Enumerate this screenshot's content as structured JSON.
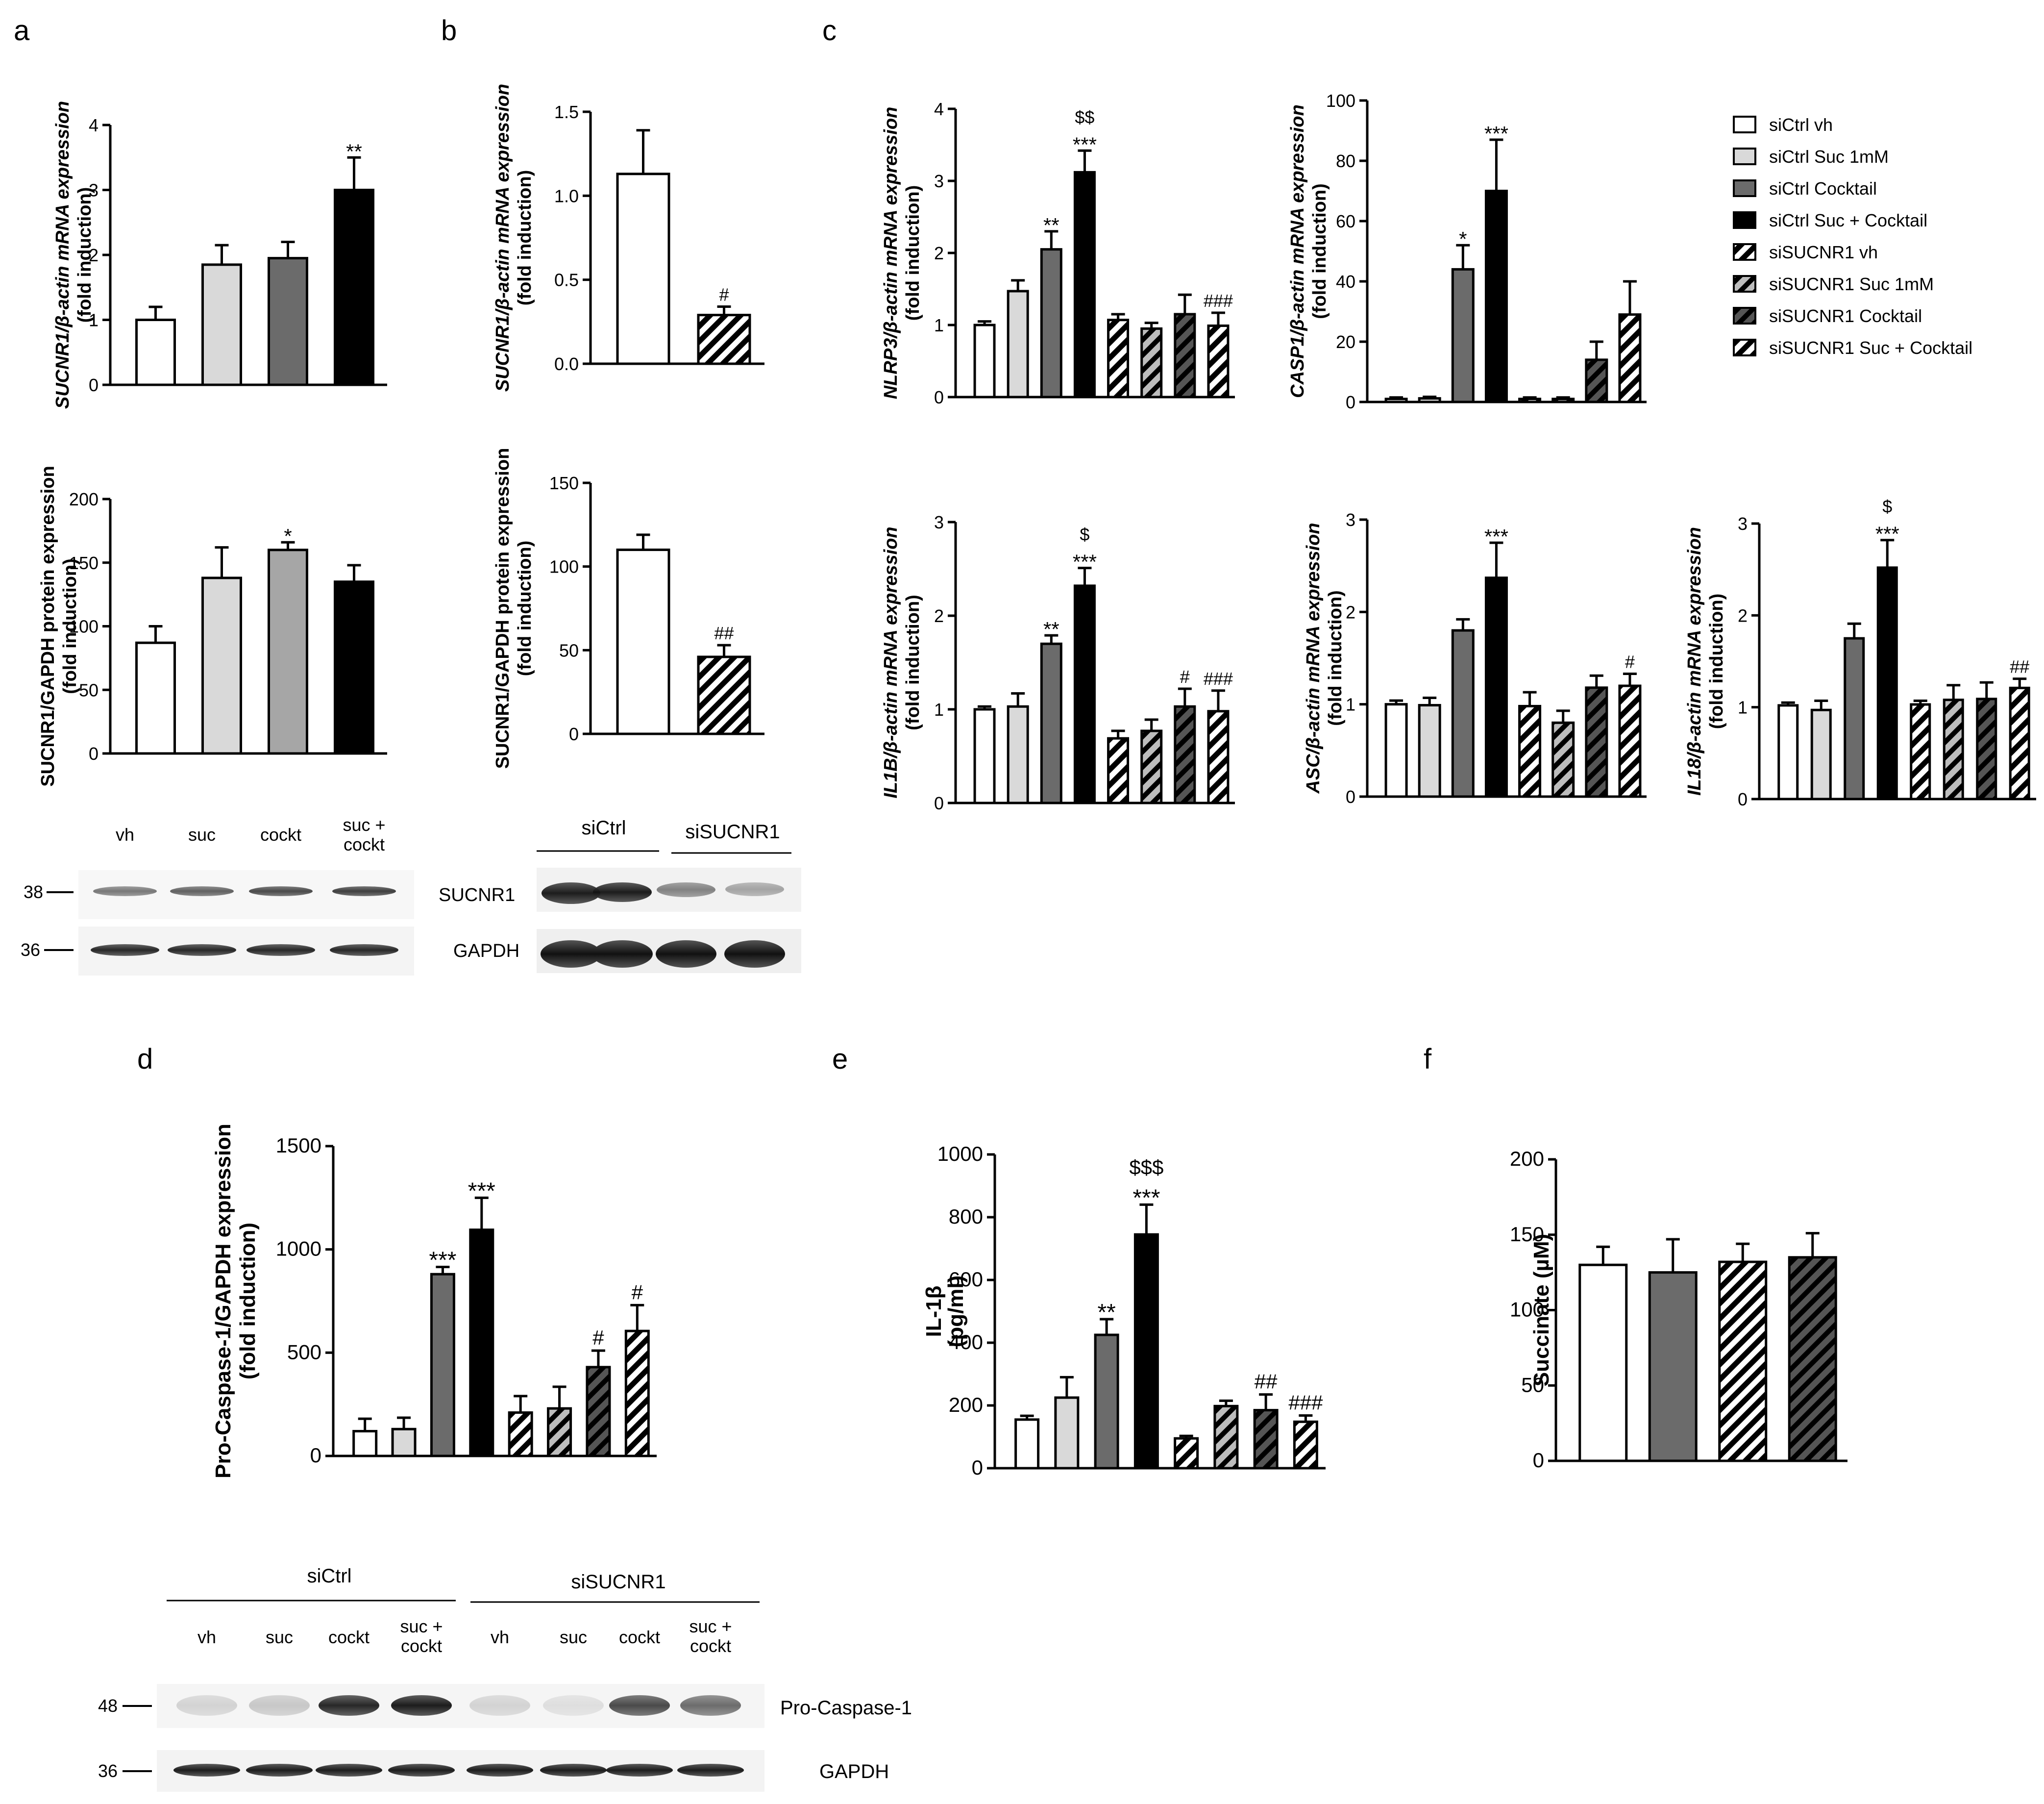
{
  "panel_letters": [
    "a",
    "b",
    "c",
    "d",
    "e",
    "f"
  ],
  "legend": [
    {
      "label": "siCtrl vh",
      "fill": "white"
    },
    {
      "label": "siCtrl Suc 1mM",
      "fill": "light"
    },
    {
      "label": "siCtrl Cocktail",
      "fill": "dark"
    },
    {
      "label": "siCtrl Suc + Cocktail",
      "fill": "black"
    },
    {
      "label": "siSUCNR1 vh",
      "fill": "hatch"
    },
    {
      "label": "siSUCNR1 Suc 1mM",
      "fill": "hatchLight"
    },
    {
      "label": "siSUCNR1 Cocktail",
      "fill": "hatchDark"
    },
    {
      "label": "siSUCNR1 Suc + Cocktail",
      "fill": "hatch"
    }
  ],
  "colors": {
    "white": "#ffffff",
    "light": "#d9d9d9",
    "mid": "#a6a6a6",
    "dark": "#6b6b6b",
    "black": "#000000",
    "hatchLight": "#bdbdbd",
    "hatchDark": "#555555"
  },
  "chart_data": [
    {
      "id": "a_mrna",
      "type": "bar",
      "ylabel": [
        "SUCNR1/β-actin mRNA expression",
        "(fold induction)"
      ],
      "ylim": [
        0,
        4
      ],
      "ticks": [
        0,
        1,
        2,
        3,
        4
      ],
      "tick_labels": [
        "0",
        "1",
        "2",
        "3",
        "4"
      ],
      "fills": [
        "white",
        "light",
        "dark",
        "black"
      ],
      "values": [
        1.0,
        1.85,
        1.95,
        3.0
      ],
      "errors": [
        0.2,
        0.3,
        0.25,
        0.5
      ],
      "annotations": [
        [],
        [],
        [],
        [
          "**"
        ]
      ]
    },
    {
      "id": "a_protein",
      "type": "bar",
      "ylabel": [
        "SUCNR1/GAPDH protein expression",
        "(fold induction)"
      ],
      "ylim": [
        0,
        200
      ],
      "ticks": [
        0,
        50,
        100,
        150,
        200
      ],
      "tick_labels": [
        "0",
        "50",
        "100",
        "150",
        "200"
      ],
      "fills": [
        "white",
        "light",
        "mid",
        "black"
      ],
      "values": [
        87,
        138,
        160,
        135
      ],
      "errors": [
        13,
        24,
        6,
        13
      ],
      "annotations": [
        [],
        [],
        [
          "*"
        ],
        []
      ]
    },
    {
      "id": "b_mrna",
      "type": "bar",
      "ylabel": [
        "SUCNR1/β-actin mRNA expression",
        "(fold induction)"
      ],
      "ylim": [
        0,
        1.5
      ],
      "ticks": [
        0,
        0.5,
        1.0,
        1.5
      ],
      "tick_labels": [
        "0.0",
        "0.5",
        "1.0",
        "1.5"
      ],
      "fills": [
        "white",
        "hatch"
      ],
      "values": [
        1.13,
        0.29
      ],
      "errors": [
        0.26,
        0.05
      ],
      "annotations": [
        [],
        [
          "#"
        ]
      ]
    },
    {
      "id": "b_protein",
      "type": "bar",
      "ylabel": [
        "SUCNR1/GAPDH protein expression",
        "(fold induction)"
      ],
      "ylim": [
        0,
        150
      ],
      "ticks": [
        0,
        50,
        100,
        150
      ],
      "tick_labels": [
        "0",
        "50",
        "100",
        "150"
      ],
      "fills": [
        "white",
        "hatch"
      ],
      "values": [
        110,
        46
      ],
      "errors": [
        9,
        7
      ],
      "annotations": [
        [],
        [
          "##"
        ]
      ]
    },
    {
      "id": "c_nlrp3",
      "type": "bar",
      "ylabel": [
        "NLRP3/β-actin mRNA expression",
        "(fold induction)"
      ],
      "ylim": [
        0,
        4
      ],
      "ticks": [
        0,
        1,
        2,
        3,
        4
      ],
      "tick_labels": [
        "0",
        "1",
        "2",
        "3",
        "4"
      ],
      "fills": [
        "white",
        "light",
        "dark",
        "black",
        "hatch",
        "hatchLight",
        "hatchDark",
        "hatch"
      ],
      "values": [
        1.0,
        1.47,
        2.05,
        3.12,
        1.07,
        0.95,
        1.15,
        0.99
      ],
      "errors": [
        0.05,
        0.15,
        0.25,
        0.3,
        0.08,
        0.08,
        0.27,
        0.18
      ],
      "annotations": [
        [],
        [],
        [
          "**"
        ],
        [
          "***",
          "$$"
        ],
        [],
        [],
        [],
        [
          "###"
        ]
      ]
    },
    {
      "id": "c_casp1",
      "type": "bar",
      "ylabel": [
        "CASP1/β-actin mRNA expression",
        "(fold induction)"
      ],
      "ylim": [
        0,
        100
      ],
      "ticks": [
        0,
        20,
        40,
        60,
        80,
        100
      ],
      "tick_labels": [
        "0",
        "20",
        "40",
        "60",
        "80",
        "100"
      ],
      "fills": [
        "white",
        "light",
        "dark",
        "black",
        "hatch",
        "hatchLight",
        "hatchDark",
        "hatch"
      ],
      "values": [
        1.0,
        1.2,
        44,
        70,
        1.0,
        1.0,
        14,
        29
      ],
      "errors": [
        0.5,
        0.5,
        8,
        17,
        0.5,
        0.5,
        6,
        11
      ],
      "annotations": [
        [],
        [],
        [
          "*"
        ],
        [
          "***"
        ],
        [],
        [],
        [],
        []
      ]
    },
    {
      "id": "c_il1b",
      "type": "bar",
      "ylabel": [
        "IL1B/β-actin mRNA expression",
        "(fold induction)"
      ],
      "ylim": [
        0,
        3
      ],
      "ticks": [
        0,
        1,
        2,
        3
      ],
      "tick_labels": [
        "0",
        "1",
        "2",
        "3"
      ],
      "fills": [
        "white",
        "light",
        "dark",
        "black",
        "hatch",
        "hatchLight",
        "hatchDark",
        "hatch"
      ],
      "values": [
        1.0,
        1.03,
        1.7,
        2.32,
        0.69,
        0.77,
        1.03,
        0.98
      ],
      "errors": [
        0.03,
        0.14,
        0.09,
        0.19,
        0.08,
        0.12,
        0.19,
        0.22
      ],
      "annotations": [
        [],
        [],
        [
          "**"
        ],
        [
          "***",
          "$"
        ],
        [],
        [],
        [
          "#"
        ],
        [
          "###"
        ]
      ]
    },
    {
      "id": "c_asc",
      "type": "bar",
      "ylabel": [
        "ASC/β-actin mRNA expression",
        "(fold induction)"
      ],
      "ylim": [
        0,
        3
      ],
      "ticks": [
        0,
        1,
        2,
        3
      ],
      "tick_labels": [
        "0",
        "1",
        "2",
        "3"
      ],
      "fills": [
        "white",
        "light",
        "dark",
        "black",
        "hatch",
        "hatchLight",
        "hatchDark",
        "hatch"
      ],
      "values": [
        1.0,
        0.99,
        1.8,
        2.37,
        0.98,
        0.8,
        1.18,
        1.2
      ],
      "errors": [
        0.04,
        0.08,
        0.12,
        0.38,
        0.15,
        0.13,
        0.13,
        0.13
      ],
      "annotations": [
        [],
        [],
        [],
        [
          "***"
        ],
        [],
        [],
        [],
        [
          "#"
        ]
      ]
    },
    {
      "id": "c_il18",
      "type": "bar",
      "ylabel": [
        "IL18/β-actin mRNA expression",
        "(fold induction)"
      ],
      "ylim": [
        0,
        3
      ],
      "ticks": [
        0,
        1,
        2,
        3
      ],
      "tick_labels": [
        "0",
        "1",
        "2",
        "3"
      ],
      "fills": [
        "white",
        "light",
        "dark",
        "black",
        "hatch",
        "hatchLight",
        "hatchDark",
        "hatch"
      ],
      "values": [
        1.02,
        0.97,
        1.75,
        2.52,
        1.03,
        1.08,
        1.09,
        1.21
      ],
      "errors": [
        0.03,
        0.1,
        0.16,
        0.3,
        0.04,
        0.16,
        0.18,
        0.1
      ],
      "annotations": [
        [],
        [],
        [],
        [
          "***",
          "$"
        ],
        [],
        [],
        [],
        [
          "##"
        ]
      ]
    },
    {
      "id": "d",
      "type": "bar",
      "ylabel": [
        "Pro-Caspase-1/GAPDH expression",
        "(fold induction)"
      ],
      "ylim": [
        0,
        1500
      ],
      "ticks": [
        0,
        500,
        1000,
        1500
      ],
      "tick_labels": [
        "0",
        "500",
        "1000",
        "1500"
      ],
      "fills": [
        "white",
        "light",
        "dark",
        "black",
        "hatch",
        "hatchLight",
        "hatchDark",
        "hatch"
      ],
      "values": [
        120,
        130,
        880,
        1095,
        210,
        230,
        430,
        605
      ],
      "errors": [
        60,
        55,
        35,
        155,
        80,
        105,
        80,
        125
      ],
      "annotations": [
        [],
        [],
        [
          "***"
        ],
        [
          "***"
        ],
        [],
        [],
        [
          "#"
        ],
        [
          "#"
        ]
      ]
    },
    {
      "id": "e",
      "type": "bar",
      "ylabel": [
        "IL-1β",
        "(pg/ml)"
      ],
      "ylim": [
        0,
        1000
      ],
      "ticks": [
        0,
        200,
        400,
        600,
        800,
        1000
      ],
      "tick_labels": [
        "0",
        "200",
        "400",
        "600",
        "800",
        "1000"
      ],
      "fills": [
        "white",
        "light",
        "dark",
        "black",
        "hatch",
        "hatchLight",
        "hatchDark",
        "hatch"
      ],
      "values": [
        155,
        225,
        425,
        745,
        95,
        198,
        185,
        148
      ],
      "errors": [
        12,
        65,
        50,
        95,
        8,
        17,
        50,
        20
      ],
      "annotations": [
        [],
        [],
        [
          "**"
        ],
        [
          "***",
          "$$$"
        ],
        [],
        [],
        [
          "##"
        ],
        [
          "###"
        ]
      ]
    },
    {
      "id": "f",
      "type": "bar",
      "ylabel": [
        "Succinate (µM)"
      ],
      "ylim": [
        0,
        200
      ],
      "ticks": [
        0,
        50,
        100,
        150,
        200
      ],
      "tick_labels": [
        "0",
        "50",
        "100",
        "150",
        "200"
      ],
      "fills": [
        "white",
        "dark",
        "hatch",
        "hatchDark"
      ],
      "values": [
        130,
        125,
        132,
        135
      ],
      "errors": [
        12,
        22,
        12,
        16
      ],
      "annotations": [
        [],
        [],
        [],
        []
      ]
    }
  ],
  "blots": {
    "a": {
      "lanes": [
        "vh",
        "suc",
        "cockt",
        "suc +\ncockt"
      ],
      "markers": [
        "38",
        "36"
      ]
    },
    "b": {
      "groups": [
        "siCtrl",
        "siSUCNR1"
      ],
      "rows": [
        "SUCNR1",
        "GAPDH"
      ]
    },
    "d": {
      "groups": [
        "siCtrl",
        "siSUCNR1"
      ],
      "lanes": [
        "vh",
        "suc",
        "cockt",
        "suc +\ncockt",
        "vh",
        "suc",
        "cockt",
        "suc +\ncockt"
      ],
      "markers": [
        "48",
        "36"
      ],
      "rows": [
        "Pro-Caspase-1",
        "GAPDH"
      ]
    }
  }
}
